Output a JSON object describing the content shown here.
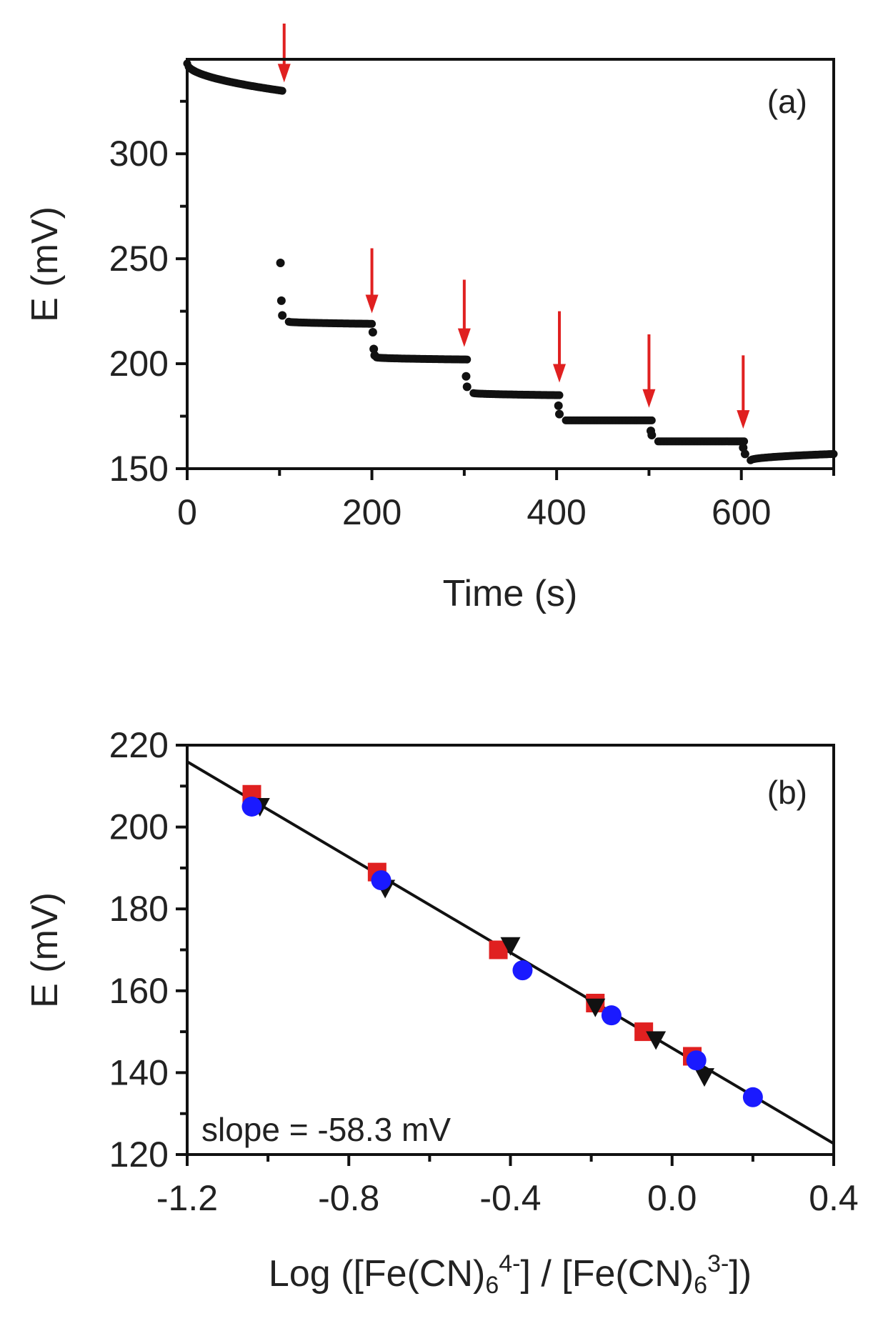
{
  "chart_data": [
    {
      "type": "scatter",
      "panel_label": "(a)",
      "xlabel": "Time (s)",
      "ylabel": "E (mV)",
      "xlim": [
        0,
        700
      ],
      "ylim": [
        150,
        345
      ],
      "x_ticks": [
        0,
        200,
        400,
        600
      ],
      "x_tick_labels": [
        "0",
        "200",
        "400",
        "600"
      ],
      "y_ticks": [
        150,
        200,
        250,
        300
      ],
      "y_tick_labels": [
        "150",
        "200",
        "250",
        "300"
      ],
      "grid": false,
      "series": [
        {
          "name": "potential",
          "color": "#111111",
          "segments": [
            {
              "t_start": 0,
              "t_end": 103,
              "e_start": 343,
              "e_end": 330
            },
            {
              "t_start": 110,
              "t_end": 200,
              "e_start": 220,
              "e_end": 219
            },
            {
              "t_start": 205,
              "t_end": 303,
              "e_start": 203,
              "e_end": 202
            },
            {
              "t_start": 310,
              "t_end": 403,
              "e_start": 186,
              "e_end": 185
            },
            {
              "t_start": 410,
              "t_end": 503,
              "e_start": 173,
              "e_end": 173
            },
            {
              "t_start": 510,
              "t_end": 603,
              "e_start": 163,
              "e_end": 163
            },
            {
              "t_start": 610,
              "t_end": 700,
              "e_start": 154,
              "e_end": 157
            }
          ],
          "transients": [
            {
              "x": 101,
              "y": 248
            },
            {
              "x": 102,
              "y": 230
            },
            {
              "x": 103,
              "y": 223
            },
            {
              "x": 201,
              "y": 215
            },
            {
              "x": 202,
              "y": 207
            },
            {
              "x": 203,
              "y": 204
            },
            {
              "x": 302,
              "y": 194
            },
            {
              "x": 303,
              "y": 189
            },
            {
              "x": 402,
              "y": 180
            },
            {
              "x": 403,
              "y": 176
            },
            {
              "x": 502,
              "y": 168
            },
            {
              "x": 503,
              "y": 166
            },
            {
              "x": 602,
              "y": 160
            },
            {
              "x": 604,
              "y": 157
            }
          ]
        }
      ],
      "annotations": [
        {
          "kind": "arrow",
          "color": "#e02020",
          "x": 105,
          "y_top": 362,
          "y_tip": 334
        },
        {
          "kind": "arrow",
          "color": "#e02020",
          "x": 200,
          "y_top": 255,
          "y_tip": 224
        },
        {
          "kind": "arrow",
          "color": "#e02020",
          "x": 300,
          "y_top": 240,
          "y_tip": 208
        },
        {
          "kind": "arrow",
          "color": "#e02020",
          "x": 403,
          "y_top": 225,
          "y_tip": 191
        },
        {
          "kind": "arrow",
          "color": "#e02020",
          "x": 500,
          "y_top": 214,
          "y_tip": 179
        },
        {
          "kind": "arrow",
          "color": "#e02020",
          "x": 602,
          "y_top": 204,
          "y_tip": 169
        }
      ]
    },
    {
      "type": "scatter",
      "panel_label": "(b)",
      "xlabel": "Log ([Fe(CN)6 4-] / [Fe(CN)6 3-])",
      "xlabel_parts": {
        "p1": "Log ([Fe(CN)",
        "sub1": "6",
        "sup1": "4-",
        "p2": "] / [Fe(CN)",
        "sub2": "6",
        "sup2": "3-",
        "p3": "])"
      },
      "ylabel": "E (mV)",
      "xlim": [
        -1.2,
        0.4
      ],
      "ylim": [
        120,
        220
      ],
      "x_ticks": [
        -1.2,
        -0.8,
        -0.4,
        0.0,
        0.4
      ],
      "x_tick_labels": [
        "-1.2",
        "-0.8",
        "-0.4",
        "0.0",
        "0.4"
      ],
      "y_ticks": [
        120,
        140,
        160,
        180,
        200,
        220
      ],
      "y_tick_labels": [
        "120",
        "140",
        "160",
        "180",
        "200",
        "220"
      ],
      "grid": false,
      "annotation_text": "slope = -58.3 mV",
      "fit_line": {
        "slope": -58.3,
        "intercept": 146.0,
        "color": "#111111"
      },
      "series": [
        {
          "name": "squares",
          "marker": "square",
          "color": "#e02020",
          "x": [
            -1.04,
            -0.73,
            -0.43,
            -0.19,
            -0.07,
            0.05
          ],
          "y": [
            208,
            189,
            170,
            157,
            150,
            144
          ]
        },
        {
          "name": "triangles",
          "marker": "triangle-down",
          "color": "#111111",
          "x": [
            -1.02,
            -0.71,
            -0.4,
            -0.19,
            -0.04,
            0.08
          ],
          "y": [
            205,
            185,
            171,
            156,
            148,
            139
          ]
        },
        {
          "name": "circles",
          "marker": "circle",
          "color": "#1a1aff",
          "x": [
            -1.04,
            -0.72,
            -0.37,
            -0.15,
            0.06,
            0.2
          ],
          "y": [
            205,
            187,
            165,
            154,
            143,
            134
          ]
        }
      ]
    }
  ]
}
